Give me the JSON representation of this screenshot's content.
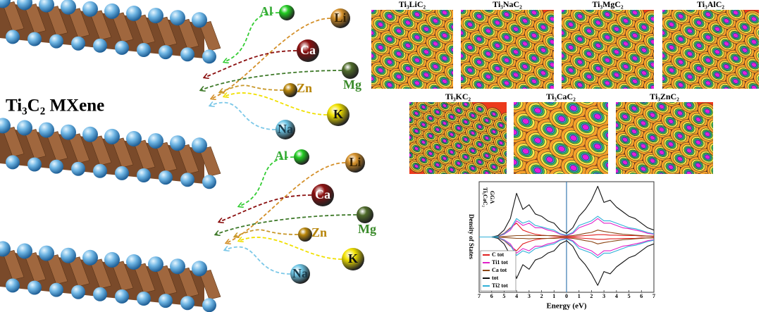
{
  "mxene_label": "Ti₃C₂ MXene",
  "atoms": {
    "top": [
      {
        "label": "Al"
      },
      {
        "label": "Li"
      },
      {
        "label": "Ca"
      },
      {
        "label": "Mg"
      },
      {
        "label": "Zn"
      },
      {
        "label": "K"
      },
      {
        "label": "Na"
      }
    ],
    "bottom": [
      {
        "label": "Al"
      },
      {
        "label": "Li"
      },
      {
        "label": "Ca"
      },
      {
        "label": "Mg"
      },
      {
        "label": "Zn"
      },
      {
        "label": "K"
      },
      {
        "label": "Na"
      }
    ]
  },
  "panels": [
    {
      "title": "Ti₃LiC₂"
    },
    {
      "title": "Ti₃NaC₂"
    },
    {
      "title": "Ti₃MgC₂"
    },
    {
      "title": "Ti₃AlC₂"
    },
    {
      "title": "Ti₃KC₂"
    },
    {
      "title": "Ti₃CaC₂"
    },
    {
      "title": "Ti₃ZnC₂"
    }
  ],
  "chart_data": {
    "type": "line",
    "title": "Ti₃CaC₂",
    "subtitle": "GGA",
    "xlabel": "Energy (eV)",
    "ylabel": "Density of States",
    "x": [
      -7,
      -6.5,
      -6,
      -5.5,
      -5,
      -4.5,
      -4,
      -3.5,
      -3,
      -2.5,
      -2,
      -1.5,
      -1,
      -0.5,
      0,
      0.5,
      1,
      1.5,
      2,
      2.5,
      3,
      3.5,
      4,
      4.5,
      5,
      5.5,
      6,
      6.5,
      7
    ],
    "xlim": [
      -7,
      7
    ],
    "ylim": [
      -12,
      12
    ],
    "xticks": [
      {
        "value": -7,
        "label": "7"
      },
      {
        "value": -6,
        "label": "6"
      },
      {
        "value": -5,
        "label": "5"
      },
      {
        "value": -4,
        "label": "4"
      },
      {
        "value": -3,
        "label": "3"
      },
      {
        "value": -2,
        "label": "2"
      },
      {
        "value": -1,
        "label": "1"
      },
      0,
      1,
      2,
      3,
      4,
      5,
      6,
      7
    ],
    "fermi_level": 0,
    "legend": "lower left",
    "series": [
      {
        "name": "C tot",
        "color": "#e02020",
        "values": [
          0,
          0,
          0,
          0.2,
          0.8,
          2,
          3,
          1.5,
          1,
          0.6,
          0.4,
          0.3,
          0.2,
          0.1,
          0.1,
          0.1,
          0.2,
          0.3,
          0.4,
          0.5,
          0.5,
          0.4,
          0.4,
          0.3,
          0.3,
          0.3,
          0.2,
          0.2,
          0.1
        ],
        "values_down": [
          0,
          0,
          0,
          -0.2,
          -0.8,
          -2,
          -3,
          -1.5,
          -1,
          -0.6,
          -0.4,
          -0.3,
          -0.2,
          -0.1,
          -0.1,
          -0.1,
          -0.2,
          -0.3,
          -0.4,
          -0.5,
          -0.5,
          -0.4,
          -0.4,
          -0.3,
          -0.3,
          -0.3,
          -0.2,
          -0.2,
          -0.1
        ]
      },
      {
        "name": "Ti1 tot",
        "color": "#e020c8",
        "values": [
          0,
          0,
          0,
          0.1,
          0.6,
          1.5,
          3.5,
          2.5,
          3,
          2,
          2,
          1.5,
          1.2,
          0.6,
          0.3,
          0.8,
          2,
          2.5,
          3,
          4,
          3,
          3,
          2.5,
          2,
          1.8,
          1.5,
          1.2,
          0.8,
          0.6
        ],
        "values_down": [
          0,
          0,
          0,
          -0.1,
          -0.6,
          -1.5,
          -3.5,
          -2.5,
          -3,
          -2,
          -2,
          -1.5,
          -1.2,
          -0.6,
          -0.3,
          -0.8,
          -2,
          -2.5,
          -3,
          -4,
          -3,
          -3,
          -2.5,
          -2,
          -1.8,
          -1.5,
          -1.2,
          -0.8,
          -0.6
        ]
      },
      {
        "name": "Ca tot",
        "color": "#8b4513",
        "values": [
          0,
          0,
          0,
          0,
          0.1,
          0.2,
          0.3,
          0.3,
          0.4,
          0.3,
          0.3,
          0.3,
          0.3,
          0.2,
          0.2,
          0.3,
          0.5,
          0.8,
          1,
          1.5,
          1.2,
          1,
          0.8,
          0.6,
          0.5,
          0.4,
          0.3,
          0.2,
          0.2
        ],
        "values_down": [
          0,
          0,
          0,
          0,
          -0.1,
          -0.2,
          -0.3,
          -0.3,
          -0.4,
          -0.3,
          -0.3,
          -0.3,
          -0.3,
          -0.2,
          -0.2,
          -0.3,
          -0.5,
          -0.8,
          -1,
          -1.5,
          -1.2,
          -1,
          -0.8,
          -0.6,
          -0.5,
          -0.4,
          -0.3,
          -0.2,
          -0.2
        ]
      },
      {
        "name": "tot",
        "color": "#111111",
        "values": [
          0,
          0,
          0,
          0.3,
          1.5,
          4,
          9.5,
          6,
          7,
          5,
          4.5,
          3.5,
          3,
          1.5,
          0.8,
          2,
          4.5,
          6,
          8,
          11,
          7.5,
          8,
          6.5,
          5.5,
          4.5,
          4,
          3,
          2,
          1.5
        ],
        "values_down": [
          0,
          0,
          0,
          -0.3,
          -1.5,
          -4,
          -9,
          -6,
          -7,
          -5,
          -4.5,
          -3.5,
          -3,
          -1.5,
          -0.8,
          -2,
          -4.5,
          -6,
          -8,
          -10.5,
          -7.5,
          -8,
          -6.5,
          -5.5,
          -4.5,
          -4,
          -3,
          -2,
          -1.5
        ]
      },
      {
        "name": "Ti2 tot",
        "color": "#30b0d8",
        "values": [
          0,
          0,
          0,
          0.1,
          0.7,
          1.8,
          4,
          3,
          3.5,
          2.5,
          2.2,
          1.8,
          1.5,
          0.7,
          0.4,
          1,
          2.5,
          3,
          3.5,
          4.5,
          3.5,
          3.5,
          3,
          2.5,
          2,
          1.8,
          1.4,
          1,
          0.7
        ],
        "values_down": [
          0,
          0,
          0,
          -0.1,
          -0.7,
          -1.8,
          -4,
          -3,
          -3.5,
          -2.5,
          -2.2,
          -1.8,
          -1.5,
          -0.7,
          -0.4,
          -1,
          -2.5,
          -3,
          -3.5,
          -4.5,
          -3.5,
          -3.5,
          -3,
          -2.5,
          -2,
          -1.8,
          -1.4,
          -1,
          -0.7
        ]
      }
    ]
  }
}
